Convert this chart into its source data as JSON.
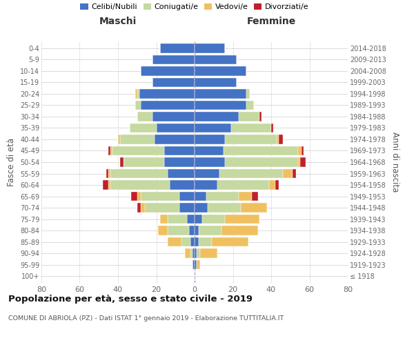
{
  "age_groups": [
    "100+",
    "95-99",
    "90-94",
    "85-89",
    "80-84",
    "75-79",
    "70-74",
    "65-69",
    "60-64",
    "55-59",
    "50-54",
    "45-49",
    "40-44",
    "35-39",
    "30-34",
    "25-29",
    "20-24",
    "15-19",
    "10-14",
    "5-9",
    "0-4"
  ],
  "birth_years": [
    "≤ 1918",
    "1919-1923",
    "1924-1928",
    "1929-1933",
    "1934-1938",
    "1939-1943",
    "1944-1948",
    "1949-1953",
    "1954-1958",
    "1959-1963",
    "1964-1968",
    "1969-1973",
    "1974-1978",
    "1979-1983",
    "1984-1988",
    "1989-1993",
    "1994-1998",
    "1999-2003",
    "2004-2008",
    "2009-2013",
    "2014-2018"
  ],
  "colors": {
    "celibe": "#4472c4",
    "coniugato": "#c5d9a0",
    "vedovo": "#f0c060",
    "divorziato": "#c0202a"
  },
  "maschi": {
    "celibe": [
      0,
      1,
      1,
      2,
      3,
      4,
      8,
      8,
      13,
      14,
      16,
      16,
      21,
      20,
      22,
      28,
      29,
      22,
      28,
      22,
      18
    ],
    "coniugato": [
      0,
      0,
      1,
      5,
      11,
      10,
      18,
      20,
      31,
      30,
      21,
      27,
      18,
      14,
      8,
      3,
      1,
      0,
      0,
      0,
      0
    ],
    "vedovo": [
      0,
      0,
      3,
      7,
      5,
      4,
      2,
      2,
      1,
      1,
      0,
      1,
      1,
      0,
      0,
      0,
      1,
      0,
      0,
      0,
      0
    ],
    "divorziato": [
      0,
      0,
      0,
      0,
      0,
      0,
      2,
      3,
      3,
      1,
      2,
      1,
      0,
      0,
      0,
      0,
      0,
      0,
      0,
      0,
      0
    ]
  },
  "femmine": {
    "nubile": [
      0,
      1,
      1,
      2,
      2,
      4,
      7,
      6,
      12,
      13,
      16,
      15,
      16,
      19,
      23,
      27,
      27,
      22,
      27,
      22,
      16
    ],
    "coniugata": [
      0,
      0,
      2,
      7,
      12,
      12,
      17,
      17,
      27,
      33,
      38,
      39,
      27,
      21,
      11,
      4,
      2,
      0,
      0,
      0,
      0
    ],
    "vedova": [
      0,
      2,
      9,
      19,
      19,
      18,
      14,
      7,
      3,
      5,
      1,
      2,
      1,
      0,
      0,
      0,
      0,
      0,
      0,
      0,
      0
    ],
    "divorziata": [
      0,
      0,
      0,
      0,
      0,
      0,
      0,
      3,
      2,
      2,
      3,
      1,
      2,
      1,
      1,
      0,
      0,
      0,
      0,
      0,
      0
    ]
  },
  "xlim": 80,
  "title": "Popolazione per età, sesso e stato civile - 2019",
  "subtitle": "COMUNE DI ABRIOLA (PZ) - Dati ISTAT 1° gennaio 2019 - Elaborazione TUTTITALIA.IT",
  "xlabel_left": "Maschi",
  "xlabel_right": "Femmine",
  "ylabel_left": "Fasce di età",
  "ylabel_right": "Anni di nascita",
  "legend_labels": [
    "Celibi/Nubili",
    "Coniugati/e",
    "Vedovi/e",
    "Divorziati/e"
  ]
}
